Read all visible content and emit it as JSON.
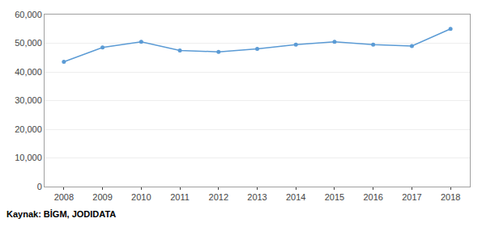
{
  "chart_data": {
    "type": "line",
    "x": [
      2008,
      2009,
      2010,
      2011,
      2012,
      2013,
      2014,
      2015,
      2016,
      2017,
      2018
    ],
    "values": [
      43500,
      48500,
      50500,
      47500,
      47000,
      48000,
      49500,
      50500,
      49500,
      49000,
      55000
    ],
    "color": "#5B9BD5",
    "marker": "circle",
    "xlim": [
      2007.5,
      2018.5
    ],
    "xticks": [
      2008,
      2009,
      2010,
      2011,
      2012,
      2013,
      2014,
      2015,
      2016,
      2017,
      2018
    ],
    "ylim": [
      0,
      60000
    ],
    "yticks": [
      0,
      {
        "value": 10000,
        "label": "10,000"
      },
      {
        "value": 20000,
        "label": "20,000"
      },
      {
        "value": 30000,
        "label": "30,000"
      },
      {
        "value": 40000,
        "label": "40,000"
      },
      {
        "value": 50000,
        "label": "50,000"
      },
      {
        "value": 60000,
        "label": "60,000"
      }
    ],
    "grid": true,
    "annotations": [
      "Kaynak: BİGM, JODIDATA"
    ]
  }
}
